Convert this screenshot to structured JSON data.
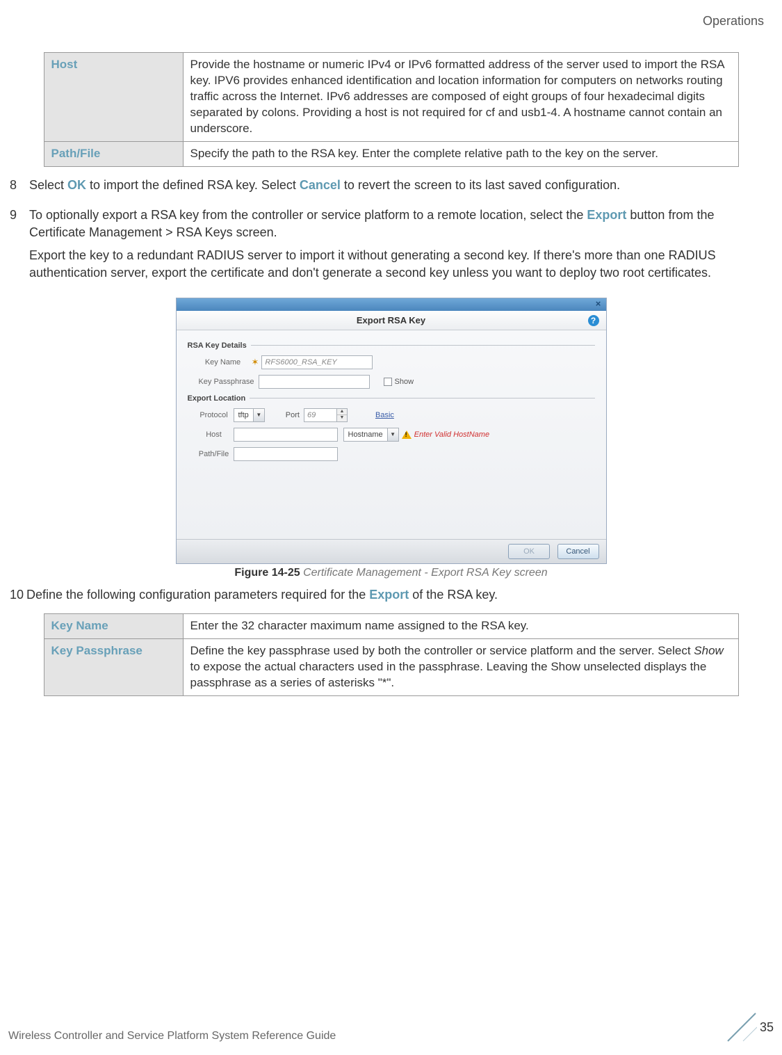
{
  "header": {
    "section": "Operations"
  },
  "table1": {
    "rows": [
      {
        "label": "Host",
        "desc": "Provide the hostname or numeric IPv4 or IPv6 formatted address of the server used to import the RSA key. IPV6 provides enhanced identification and location information for computers on networks routing traffic across the Internet. IPv6 addresses are composed of eight groups of four hexadecimal digits separated by colons. Providing a host is not required for cf and usb1-4. A hostname cannot contain an underscore."
      },
      {
        "label": "Path/File",
        "desc": "Specify the path to the RSA key. Enter the complete relative path to the key on the server."
      }
    ]
  },
  "steps": {
    "s8": {
      "num": "8",
      "pre": "Select ",
      "b1": "OK",
      "mid": " to import the defined RSA key. Select ",
      "b2": "Cancel",
      "post": " to revert the screen to its last saved configuration."
    },
    "s9": {
      "num": "9",
      "l1a": "To optionally export a RSA key from the controller or service platform to a remote location, select the ",
      "l1b": "Export",
      "l1c": " button from the Certificate Management > RSA Keys screen.",
      "l2": "Export the key to a redundant RADIUS server to import it without generating a second key. If there's more than one RADIUS authentication server, export the certificate and don't generate a second key unless you want to deploy two root certificates."
    },
    "s10": {
      "num": "10",
      "pre": "Define the following configuration parameters required for the ",
      "b1": "Export",
      "post": " of the RSA key."
    }
  },
  "dialog": {
    "title": "Export RSA Key",
    "close": "×",
    "help": "?",
    "section1": "RSA Key Details",
    "keyname_label": "Key Name",
    "keyname_value": "RFS6000_RSA_KEY",
    "passphrase_label": "Key Passphrase",
    "show_label": "Show",
    "section2": "Export Location",
    "protocol_label": "Protocol",
    "protocol_value": "tftp",
    "port_label": "Port",
    "port_value": "69",
    "basic_link": "Basic",
    "host_label": "Host",
    "hosttype_value": "Hostname",
    "host_error": "Enter Valid HostName",
    "path_label": "Path/File",
    "ok_btn": "OK",
    "cancel_btn": "Cancel"
  },
  "figure": {
    "label": "Figure 14-25",
    "title": "  Certificate Management - Export RSA Key screen"
  },
  "table2": {
    "rows": [
      {
        "label": "Key Name",
        "desc": "Enter the 32 character maximum name assigned to the RSA key."
      },
      {
        "label": "Key Passphrase",
        "desc": "Define the key passphrase used by both the controller or service platform and the server. Select Show to expose the actual characters used in the passphrase. Leaving the Show unselected displays the passphrase as a series of asterisks \"*\"."
      }
    ]
  },
  "footer": {
    "guide": "Wireless Controller and Service Platform System Reference Guide",
    "page": "35"
  }
}
